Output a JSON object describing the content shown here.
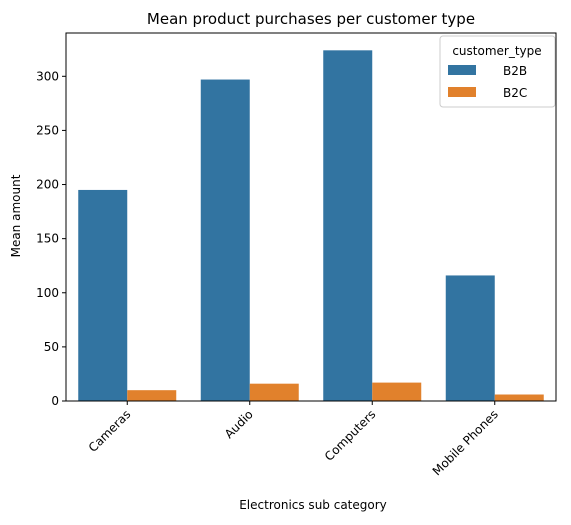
{
  "chart_data": {
    "type": "bar",
    "title": "Mean product purchases per customer type",
    "xlabel": "Electronics sub category",
    "ylabel": "Mean amount",
    "categories": [
      "Cameras",
      "Audio",
      "Computers",
      "Mobile Phones"
    ],
    "series": [
      {
        "name": "B2B",
        "values": [
          195,
          297,
          324,
          116
        ],
        "color": "#3274a1"
      },
      {
        "name": "B2C",
        "values": [
          10,
          16,
          17,
          6
        ],
        "color": "#e1812c"
      }
    ],
    "ylim": [
      0,
      340
    ],
    "yticks": [
      0,
      50,
      100,
      150,
      200,
      250,
      300
    ],
    "legend": {
      "title": "customer_type",
      "placement": "top-right"
    },
    "grid": false
  }
}
